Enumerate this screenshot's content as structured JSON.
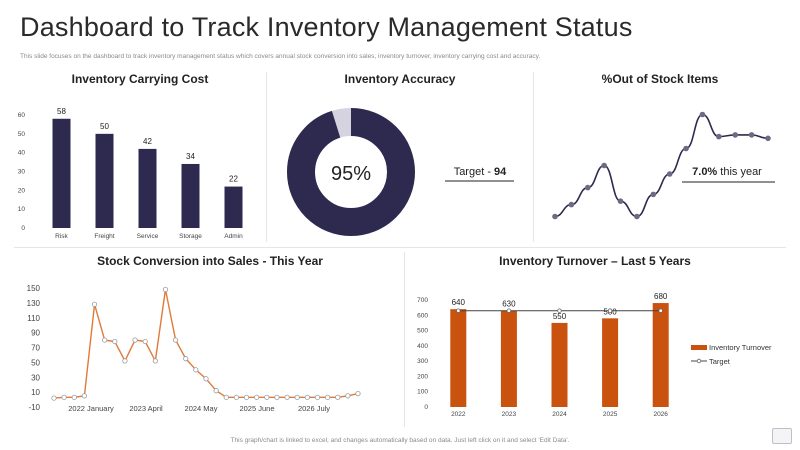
{
  "header": {
    "title": "Dashboard to Track Inventory Management Status",
    "subtitle": "This slide focuses on the dashboard to track inventory management status which covers annual stock conversion into sales, inventory turnover, inventory carrying cost and accuracy."
  },
  "footer": {
    "note": "This graph/chart is linked to excel, and changes automatically based on data. Just left click on it and select 'Edit Data'."
  },
  "colors": {
    "navy": "#2e2a4f",
    "orange": "#c9520f",
    "accent_line": "#e07a3b",
    "track_gray": "#d5d3df"
  },
  "chart_data": [
    {
      "type": "bar",
      "title": "Inventory Carrying Cost",
      "categories": [
        "Risk",
        "Freight",
        "Service",
        "Storage",
        "Admin"
      ],
      "values": [
        58,
        50,
        42,
        34,
        22
      ],
      "yticks": [
        0,
        10,
        20,
        30,
        40,
        50,
        60
      ],
      "ylim": [
        0,
        60
      ],
      "color": "#2e2a4f"
    },
    {
      "type": "pie",
      "title": "Inventory Accuracy",
      "value": 95,
      "center_label": "95%",
      "side_label": "Target - ",
      "side_value": "94",
      "color": "#2e2a4f"
    },
    {
      "type": "line",
      "title": "%Out of Stock Items",
      "values": [
        5,
        12,
        22,
        35,
        14,
        5,
        18,
        30,
        45,
        65,
        52,
        53,
        53,
        51
      ],
      "ylim": [
        0,
        70
      ],
      "callout_value": "7.0%",
      "callout_text": " this year",
      "color": "#2e2a4f"
    },
    {
      "type": "line",
      "title": "Stock Conversion into Sales - This Year",
      "values": [
        2,
        3,
        3,
        5,
        128,
        80,
        78,
        52,
        80,
        78,
        52,
        148,
        80,
        55,
        40,
        28,
        12,
        3,
        3,
        3,
        3,
        3,
        3,
        3,
        3,
        3,
        3,
        3,
        3,
        5,
        8
      ],
      "yticks": [
        -10,
        10,
        30,
        50,
        70,
        90,
        110,
        130,
        150
      ],
      "ylim": [
        -10,
        150
      ],
      "xlabels": [
        "2022 January",
        "2023 April",
        "2024 May",
        "2025 June",
        "2026 July"
      ],
      "color": "#e07a3b"
    },
    {
      "type": "bar",
      "title": "Inventory Turnover – Last 5 Years",
      "categories": [
        "2022",
        "2023",
        "2024",
        "2025",
        "2026"
      ],
      "values": [
        640,
        630,
        550,
        580,
        680
      ],
      "target": 630,
      "yticks": [
        0,
        100,
        200,
        300,
        400,
        500,
        600,
        700
      ],
      "ylim": [
        0,
        700
      ],
      "series": [
        {
          "name": "Inventory Turnover",
          "values": [
            640,
            630,
            550,
            580,
            680
          ]
        },
        {
          "name": "Target",
          "values": [
            630,
            630,
            630,
            630,
            630
          ]
        }
      ],
      "legend": "right",
      "color": "#c9520f"
    }
  ]
}
